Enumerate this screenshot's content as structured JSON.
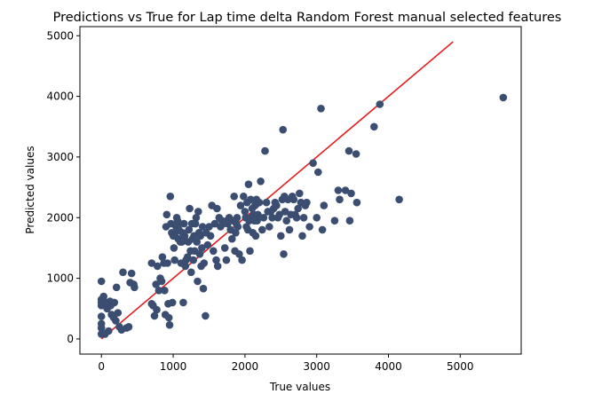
{
  "chart_data": {
    "type": "scatter",
    "title": "Predictions vs True for Lap time delta Random Forest manual selected features",
    "xlabel": "True values",
    "ylabel": "Predicted values",
    "xlim": [
      -300,
      5850
    ],
    "ylim": [
      -250,
      5150
    ],
    "xticks": [
      0,
      1000,
      2000,
      3000,
      4000,
      5000
    ],
    "yticks": [
      0,
      1000,
      2000,
      3000,
      4000,
      5000
    ],
    "grid": false,
    "point_color": "#3b4e72",
    "line_color": "#e41a1c",
    "reference_line": {
      "x": [
        0,
        4900
      ],
      "y": [
        0,
        4900
      ]
    },
    "points": [
      [
        0,
        950
      ],
      [
        0,
        650
      ],
      [
        0,
        600
      ],
      [
        0,
        550
      ],
      [
        0,
        370
      ],
      [
        0,
        250
      ],
      [
        0,
        180
      ],
      [
        0,
        80
      ],
      [
        30,
        700
      ],
      [
        50,
        80
      ],
      [
        60,
        600
      ],
      [
        80,
        500
      ],
      [
        100,
        130
      ],
      [
        120,
        620
      ],
      [
        130,
        550
      ],
      [
        140,
        400
      ],
      [
        170,
        350
      ],
      [
        180,
        600
      ],
      [
        200,
        300
      ],
      [
        210,
        850
      ],
      [
        230,
        430
      ],
      [
        250,
        200
      ],
      [
        280,
        150
      ],
      [
        300,
        1100
      ],
      [
        350,
        180
      ],
      [
        380,
        200
      ],
      [
        400,
        930
      ],
      [
        420,
        1080
      ],
      [
        450,
        900
      ],
      [
        460,
        850
      ],
      [
        700,
        1250
      ],
      [
        700,
        580
      ],
      [
        720,
        550
      ],
      [
        740,
        380
      ],
      [
        760,
        900
      ],
      [
        770,
        480
      ],
      [
        780,
        1200
      ],
      [
        800,
        800
      ],
      [
        820,
        1000
      ],
      [
        840,
        950
      ],
      [
        850,
        1350
      ],
      [
        870,
        1250
      ],
      [
        880,
        800
      ],
      [
        890,
        400
      ],
      [
        900,
        1850
      ],
      [
        910,
        2050
      ],
      [
        920,
        1250
      ],
      [
        930,
        580
      ],
      [
        940,
        350
      ],
      [
        950,
        230
      ],
      [
        960,
        2350
      ],
      [
        970,
        1900
      ],
      [
        980,
        1750
      ],
      [
        990,
        600
      ],
      [
        1000,
        1700
      ],
      [
        1010,
        1500
      ],
      [
        1020,
        1300
      ],
      [
        1030,
        1750
      ],
      [
        1040,
        1850
      ],
      [
        1050,
        2000
      ],
      [
        1060,
        1950
      ],
      [
        1070,
        1650
      ],
      [
        1080,
        1800
      ],
      [
        1090,
        1900
      ],
      [
        1100,
        1600
      ],
      [
        1110,
        1250
      ],
      [
        1120,
        1600
      ],
      [
        1130,
        1750
      ],
      [
        1140,
        600
      ],
      [
        1150,
        1900
      ],
      [
        1160,
        1700
      ],
      [
        1170,
        1200
      ],
      [
        1180,
        1300
      ],
      [
        1200,
        1350
      ],
      [
        1210,
        1600
      ],
      [
        1220,
        1800
      ],
      [
        1230,
        2150
      ],
      [
        1240,
        1450
      ],
      [
        1250,
        1100
      ],
      [
        1260,
        1900
      ],
      [
        1270,
        1650
      ],
      [
        1280,
        1300
      ],
      [
        1290,
        1700
      ],
      [
        1300,
        1450
      ],
      [
        1310,
        1900
      ],
      [
        1320,
        2000
      ],
      [
        1330,
        1600
      ],
      [
        1340,
        950
      ],
      [
        1350,
        2100
      ],
      [
        1360,
        1750
      ],
      [
        1370,
        1400
      ],
      [
        1380,
        1700
      ],
      [
        1390,
        1200
      ],
      [
        1400,
        1500
      ],
      [
        1410,
        1850
      ],
      [
        1420,
        830
      ],
      [
        1430,
        1250
      ],
      [
        1450,
        380
      ],
      [
        1460,
        1750
      ],
      [
        1480,
        1550
      ],
      [
        1500,
        1850
      ],
      [
        1520,
        1700
      ],
      [
        1540,
        2200
      ],
      [
        1560,
        1450
      ],
      [
        1580,
        1900
      ],
      [
        1600,
        1300
      ],
      [
        1610,
        2150
      ],
      [
        1620,
        1200
      ],
      [
        1640,
        2000
      ],
      [
        1660,
        1850
      ],
      [
        1680,
        1950
      ],
      [
        1700,
        1900
      ],
      [
        1720,
        1500
      ],
      [
        1740,
        1300
      ],
      [
        1750,
        1950
      ],
      [
        1760,
        1900
      ],
      [
        1780,
        2000
      ],
      [
        1800,
        1800
      ],
      [
        1820,
        1650
      ],
      [
        1840,
        1950
      ],
      [
        1850,
        2350
      ],
      [
        1860,
        1450
      ],
      [
        1870,
        1750
      ],
      [
        1880,
        1900
      ],
      [
        1890,
        2000
      ],
      [
        1900,
        1850
      ],
      [
        1920,
        1400
      ],
      [
        1940,
        2200
      ],
      [
        1960,
        1300
      ],
      [
        1980,
        2350
      ],
      [
        2000,
        2100
      ],
      [
        2010,
        2000
      ],
      [
        2020,
        1850
      ],
      [
        2030,
        2250
      ],
      [
        2040,
        1800
      ],
      [
        2050,
        2550
      ],
      [
        2060,
        1950
      ],
      [
        2070,
        1450
      ],
      [
        2080,
        2300
      ],
      [
        2090,
        2000
      ],
      [
        2100,
        2150
      ],
      [
        2110,
        1750
      ],
      [
        2120,
        2050
      ],
      [
        2130,
        1950
      ],
      [
        2140,
        2200
      ],
      [
        2150,
        1700
      ],
      [
        2160,
        2300
      ],
      [
        2170,
        1950
      ],
      [
        2180,
        2050
      ],
      [
        2200,
        2250
      ],
      [
        2220,
        2600
      ],
      [
        2240,
        1800
      ],
      [
        2260,
        2000
      ],
      [
        2280,
        3100
      ],
      [
        2300,
        2250
      ],
      [
        2320,
        2100
      ],
      [
        2340,
        1850
      ],
      [
        2360,
        2100
      ],
      [
        2380,
        2000
      ],
      [
        2400,
        2150
      ],
      [
        2420,
        2250
      ],
      [
        2440,
        2200
      ],
      [
        2460,
        2000
      ],
      [
        2480,
        2050
      ],
      [
        2500,
        1700
      ],
      [
        2520,
        2300
      ],
      [
        2530,
        3450
      ],
      [
        2540,
        1400
      ],
      [
        2550,
        2350
      ],
      [
        2560,
        2100
      ],
      [
        2580,
        1950
      ],
      [
        2600,
        2300
      ],
      [
        2620,
        1800
      ],
      [
        2640,
        2050
      ],
      [
        2660,
        2350
      ],
      [
        2680,
        2300
      ],
      [
        2700,
        2050
      ],
      [
        2720,
        2000
      ],
      [
        2740,
        2150
      ],
      [
        2760,
        2400
      ],
      [
        2780,
        2250
      ],
      [
        2800,
        1700
      ],
      [
        2820,
        2000
      ],
      [
        2840,
        2200
      ],
      [
        2860,
        2250
      ],
      [
        2900,
        1850
      ],
      [
        2950,
        2900
      ],
      [
        3000,
        2000
      ],
      [
        3020,
        2750
      ],
      [
        3060,
        3800
      ],
      [
        3080,
        1800
      ],
      [
        3100,
        2200
      ],
      [
        3250,
        1950
      ],
      [
        3300,
        2450
      ],
      [
        3320,
        2300
      ],
      [
        3400,
        2450
      ],
      [
        3450,
        3100
      ],
      [
        3460,
        1950
      ],
      [
        3480,
        2400
      ],
      [
        3550,
        3050
      ],
      [
        3560,
        2250
      ],
      [
        3800,
        3500
      ],
      [
        3880,
        3870
      ],
      [
        4150,
        2300
      ],
      [
        5600,
        3980
      ]
    ]
  }
}
